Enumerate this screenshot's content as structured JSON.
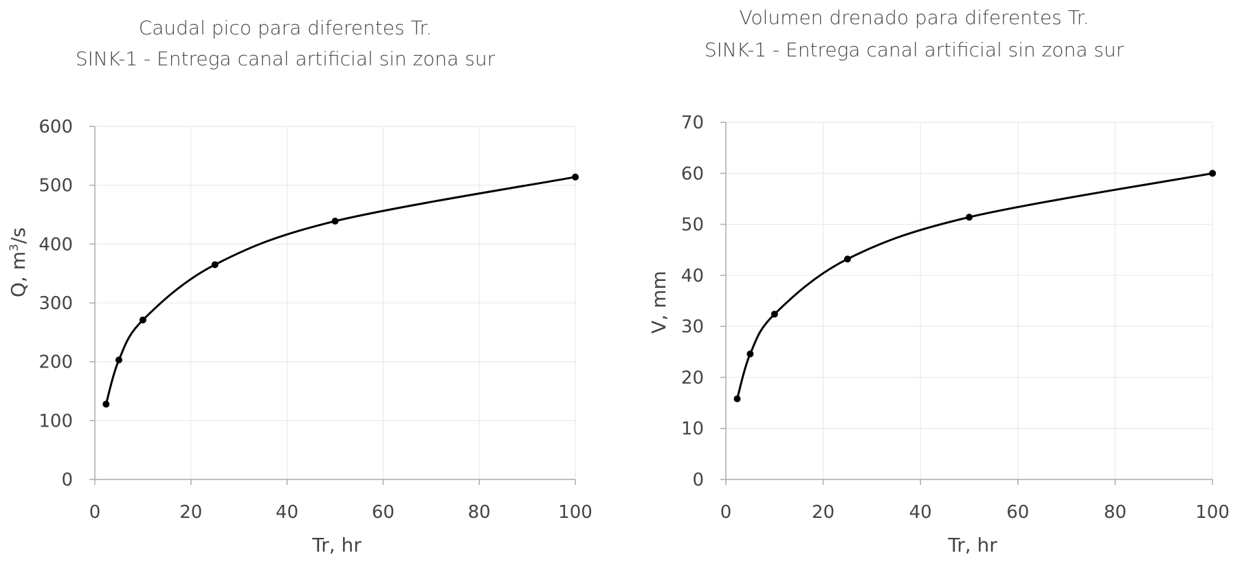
{
  "chart_data": [
    {
      "type": "line",
      "title": [
        "Caudal pico para diferentes Tr.",
        "SINK-1 - Entrega canal artificial sin zona sur"
      ],
      "xlabel": "Tr, hr",
      "ylabel_main": "Q, m",
      "ylabel_sup": "3",
      "ylabel_tail": "/s",
      "xlim": [
        0,
        100
      ],
      "ylim": [
        0,
        600
      ],
      "xticks": [
        "0",
        "20",
        "40",
        "60",
        "80",
        "100"
      ],
      "yticks": [
        "0",
        "100",
        "200",
        "300",
        "400",
        "500",
        "600"
      ],
      "x": [
        2.33,
        5,
        10,
        25,
        50,
        100
      ],
      "y": [
        128,
        203,
        271,
        365,
        439,
        514
      ],
      "grid": true,
      "smooth": true
    },
    {
      "type": "line",
      "title": [
        "Volumen drenado para diferentes Tr.",
        "SINK-1 - Entrega canal artificial sin zona sur"
      ],
      "xlabel": "Tr, hr",
      "ylabel_main": "V, mm",
      "ylabel_sup": "",
      "ylabel_tail": "",
      "xlim": [
        0,
        100
      ],
      "ylim": [
        0,
        70
      ],
      "xticks": [
        "0",
        "20",
        "40",
        "60",
        "80",
        "100"
      ],
      "yticks": [
        "0",
        "10",
        "20",
        "30",
        "40",
        "50",
        "60",
        "70"
      ],
      "x": [
        2.33,
        5,
        10,
        25,
        50,
        100
      ],
      "y": [
        15.8,
        24.6,
        32.4,
        43.2,
        51.4,
        60
      ],
      "grid": true,
      "smooth": true
    }
  ]
}
